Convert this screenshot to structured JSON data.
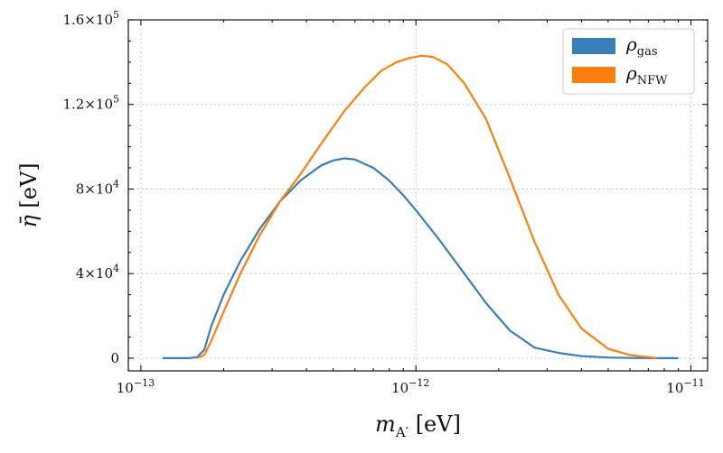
{
  "chart_data": {
    "type": "line",
    "xscale": "log",
    "xlim": [
      9e-14,
      1.15e-11
    ],
    "ylim": [
      -6000,
      160000
    ],
    "xlabel_main": "m",
    "xlabel_sub": "A′",
    "xlabel_unit": " [eV]",
    "ylabel_main": "η̄",
    "ylabel_unit": " [eV]",
    "grid": true,
    "legend_position": "top-right",
    "x_ticks": [
      {
        "value": 1e-13,
        "base": "10",
        "exp": "−13"
      },
      {
        "value": 1e-12,
        "base": "10",
        "exp": "−12"
      },
      {
        "value": 1e-11,
        "base": "10",
        "exp": "−11"
      }
    ],
    "y_ticks": [
      {
        "value": 0,
        "mant": "0",
        "exp": ""
      },
      {
        "value": 40000,
        "mant": "4×10",
        "exp": "4"
      },
      {
        "value": 80000,
        "mant": "8×10",
        "exp": "4"
      },
      {
        "value": 120000,
        "mant": "1.2×10",
        "exp": "5"
      },
      {
        "value": 160000,
        "mant": "1.6×10",
        "exp": "5"
      }
    ],
    "series": [
      {
        "name": "ρ",
        "name_sub": "gas",
        "color": "#3a7fb8",
        "x": [
          1.2e-13,
          1.5e-13,
          1.6e-13,
          1.7e-13,
          1.8e-13,
          2e-13,
          2.3e-13,
          2.7e-13,
          3.2e-13,
          3.8e-13,
          4.5e-13,
          5e-13,
          5.5e-13,
          6e-13,
          7e-13,
          8e-13,
          9e-13,
          1e-12,
          1.2e-12,
          1.5e-12,
          1.8e-12,
          2.2e-12,
          2.7e-12,
          3.3e-12,
          4e-12,
          5e-12,
          6e-12,
          7e-12,
          9e-12
        ],
        "y": [
          0,
          0,
          500,
          4000,
          15000,
          30000,
          46000,
          61000,
          74000,
          84000,
          91000,
          93500,
          94500,
          94000,
          90000,
          84000,
          77000,
          70000,
          57000,
          40000,
          26000,
          13000,
          5000,
          2500,
          1000,
          300,
          100,
          0,
          0
        ]
      },
      {
        "name": "ρ",
        "name_sub": "NFW",
        "color": "#ff7f0e",
        "x": [
          1.6e-13,
          1.7e-13,
          1.8e-13,
          2e-13,
          2.3e-13,
          2.7e-13,
          3.2e-13,
          3.8e-13,
          4.5e-13,
          5.5e-13,
          6.5e-13,
          7.5e-13,
          8.5e-13,
          9.5e-13,
          1.05e-12,
          1.15e-12,
          1.3e-12,
          1.5e-12,
          1.8e-12,
          2.2e-12,
          2.7e-12,
          3.3e-12,
          4e-12,
          5e-12,
          6e-12,
          7e-12,
          7.5e-12
        ],
        "y": [
          0,
          1500,
          8000,
          22000,
          40000,
          58000,
          74000,
          87000,
          101000,
          117000,
          128000,
          136000,
          140000,
          142000,
          143000,
          142500,
          139000,
          130000,
          113000,
          85000,
          55000,
          30000,
          14000,
          4500,
          1500,
          500,
          0
        ]
      }
    ]
  }
}
